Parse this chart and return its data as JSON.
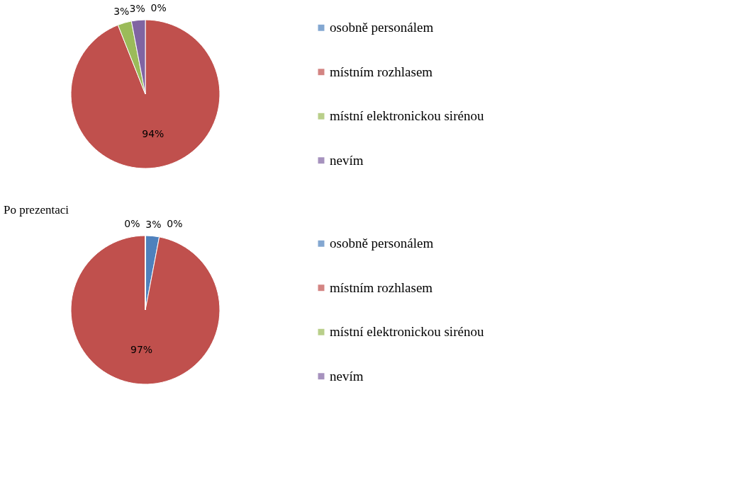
{
  "chart_data": [
    {
      "type": "pie",
      "categories": [
        "osobně personálem",
        "místním rozhlasem",
        "místní elektronickou sirénou",
        "nevím"
      ],
      "values": [
        0,
        94,
        3,
        3
      ],
      "colors": [
        "#4f81bd",
        "#c0504d",
        "#9bbb59",
        "#8064a2"
      ],
      "value_labels": [
        "0%",
        "94%",
        "3%",
        "3%"
      ],
      "legend": "right"
    },
    {
      "type": "pie",
      "title": "Po prezentaci",
      "categories": [
        "osobně personálem",
        "místním rozhlasem",
        "místní elektronickou sirénou",
        "nevím"
      ],
      "values": [
        3,
        97,
        0,
        0
      ],
      "colors": [
        "#4f81bd",
        "#c0504d",
        "#9bbb59",
        "#8064a2"
      ],
      "value_labels": [
        "3%",
        "97%",
        "0%",
        "0%"
      ],
      "legend": "right"
    }
  ]
}
